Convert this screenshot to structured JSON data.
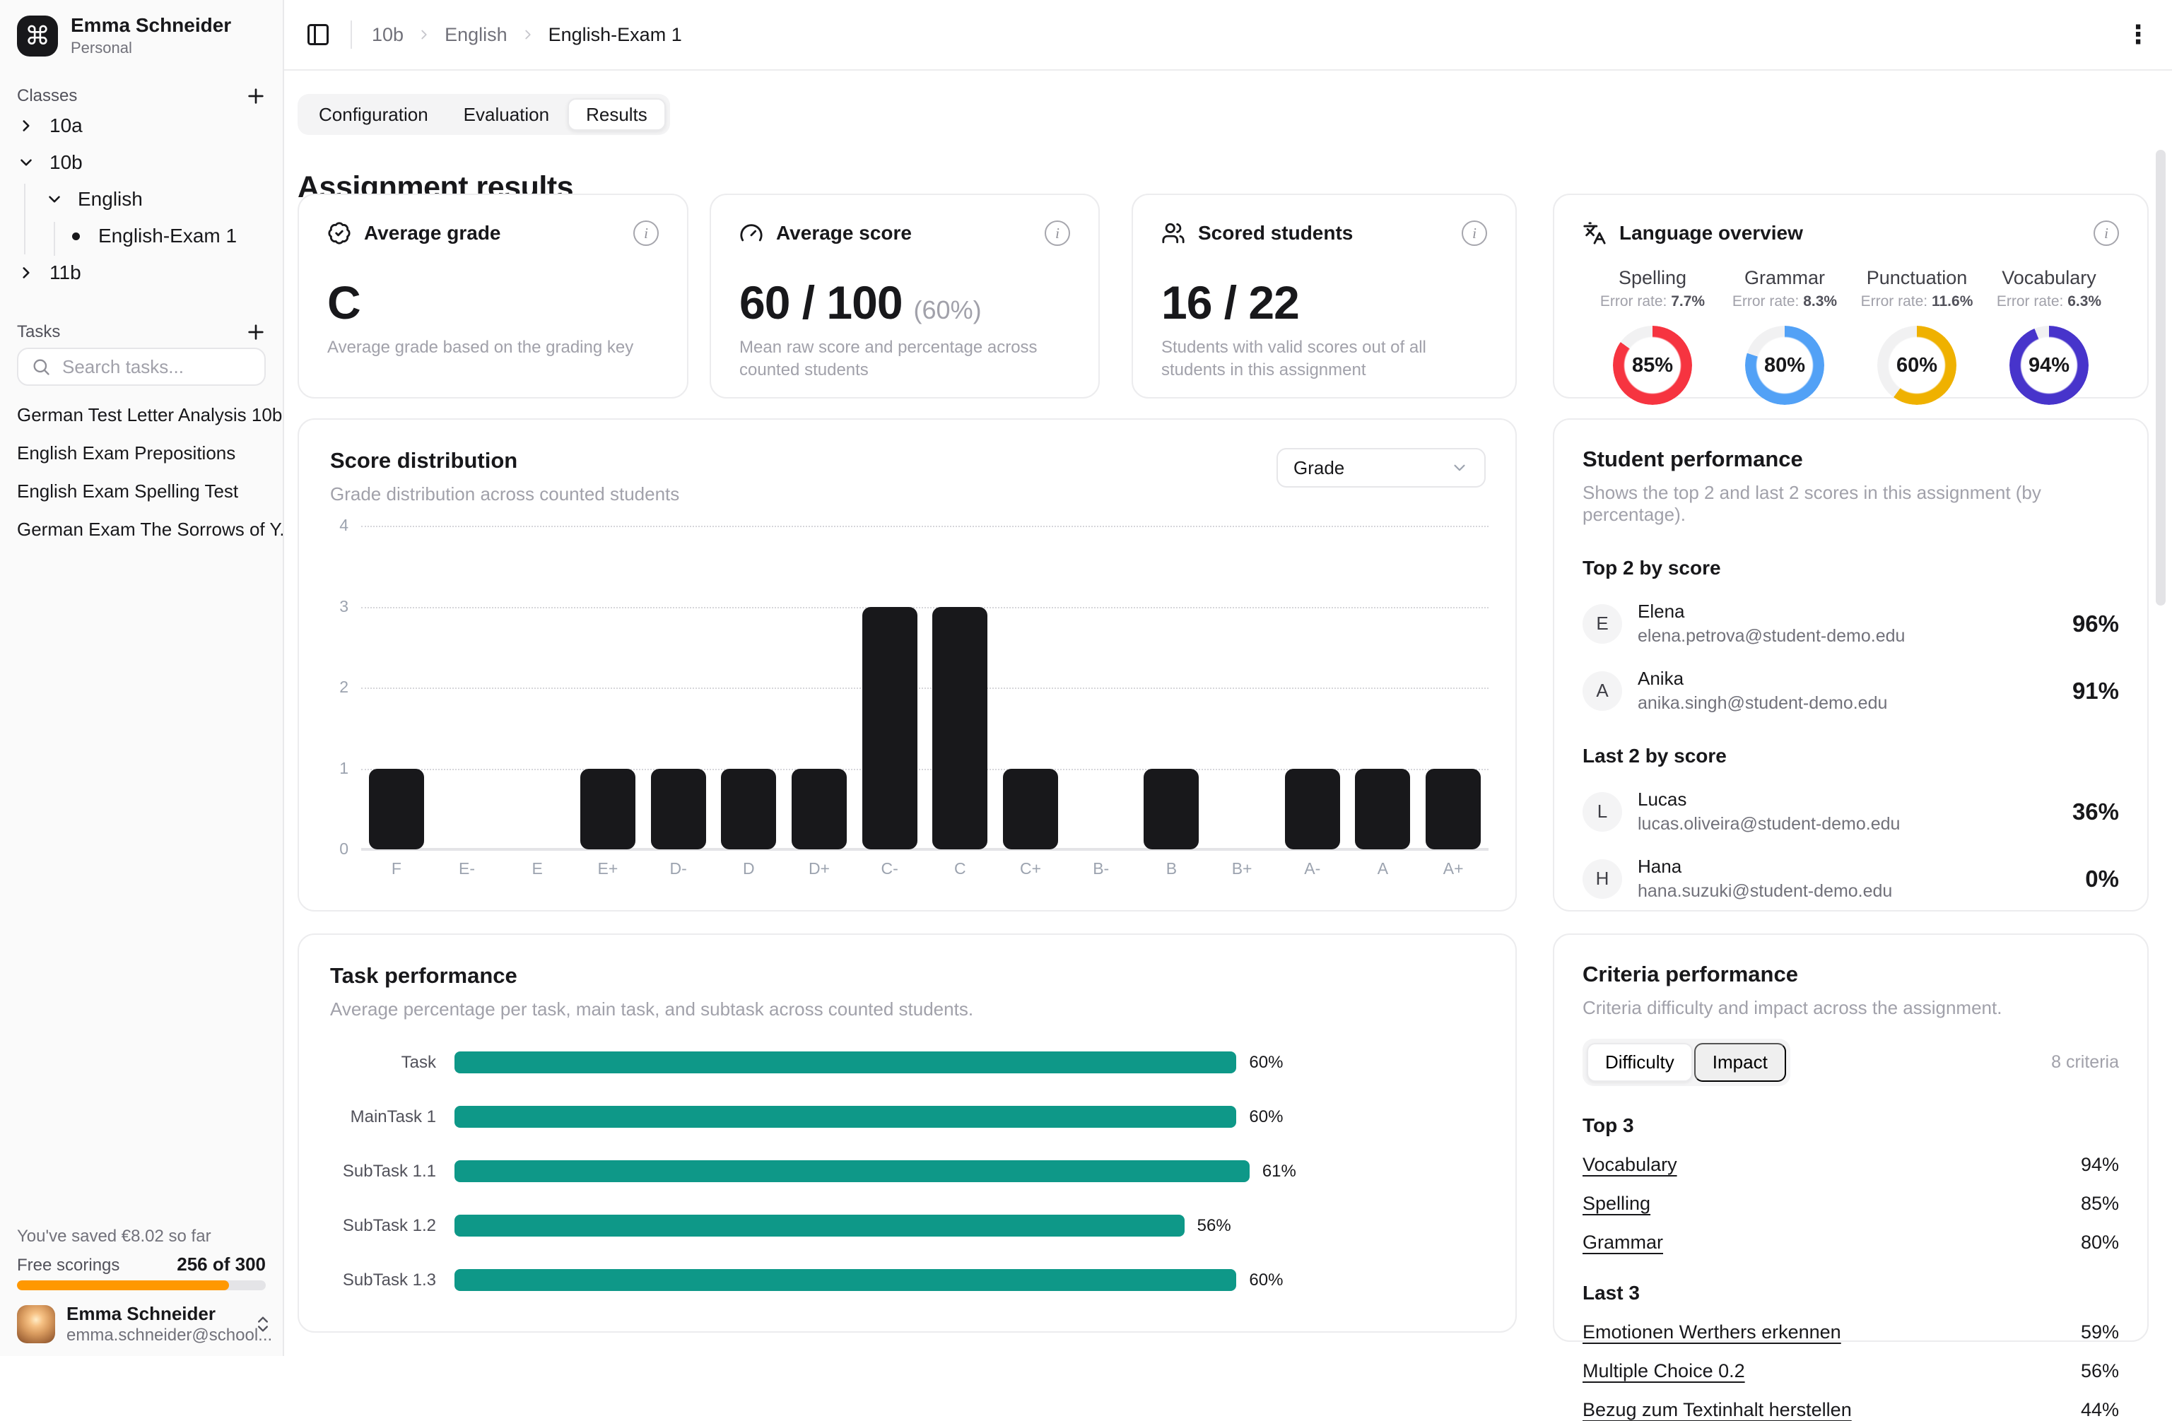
{
  "icons": {
    "workspace_glyph": "⌘",
    "kebab": "⋮",
    "info": "i"
  },
  "colors": {
    "accent_teal": "#0e9888",
    "bar_black": "#18181b",
    "progress_orange": "#ff9800",
    "ring_red": "#f63440",
    "ring_blue": "#52a1f6",
    "ring_amber": "#efb100",
    "ring_indigo": "#4734cb"
  },
  "sidebar": {
    "workspace": {
      "name": "Emma Schneider",
      "type": "Personal"
    },
    "classes_label": "Classes",
    "classes": [
      {
        "label": "10a",
        "state": "collapsed",
        "level": 0
      },
      {
        "label": "10b",
        "state": "expanded",
        "level": 0
      },
      {
        "label": "English",
        "state": "expanded",
        "level": 1
      },
      {
        "label": "English-Exam 1",
        "state": "leaf",
        "level": 2
      },
      {
        "label": "11b",
        "state": "collapsed",
        "level": 0
      }
    ],
    "tasks_label": "Tasks",
    "search_placeholder": "Search tasks...",
    "tasks": [
      "German Test Letter Analysis 10b",
      "English Exam Prepositions",
      "English Exam Spelling Test",
      "German Exam The Sorrows of Y..."
    ],
    "saved_text": "You've saved €8.02 so far",
    "free_scorings": {
      "label": "Free scorings",
      "used": 256,
      "total": 300,
      "display": "256 of 300",
      "bar_color": "#ff9800"
    },
    "user": {
      "name": "Emma Schneider",
      "email": "emma.schneider@school..."
    }
  },
  "topbar": {
    "breadcrumb": [
      {
        "label": "10b",
        "current": false
      },
      {
        "label": "English",
        "current": false
      },
      {
        "label": "English-Exam 1",
        "current": true
      }
    ]
  },
  "tabs": [
    {
      "label": "Configuration",
      "active": false
    },
    {
      "label": "Evaluation",
      "active": false
    },
    {
      "label": "Results",
      "active": true
    }
  ],
  "page_title": "Assignment results",
  "summary_cards": {
    "average_grade": {
      "title": "Average grade",
      "value": "C",
      "caption": "Average grade based on the grading key"
    },
    "average_score": {
      "title": "Average score",
      "value": "60 / 100",
      "percent": "(60%)",
      "caption": "Mean raw score and percentage across counted students"
    },
    "scored_students": {
      "title": "Scored students",
      "value": "16 / 22",
      "caption": "Students with valid scores out of all students in this assignment"
    },
    "language_overview": {
      "title": "Language overview",
      "metrics": [
        {
          "label": "Spelling",
          "error_rate_label": "Error rate:",
          "error_rate": "7.7%",
          "value": 85,
          "color": "#f63440"
        },
        {
          "label": "Grammar",
          "error_rate_label": "Error rate:",
          "error_rate": "8.3%",
          "value": 80,
          "color": "#52a1f6"
        },
        {
          "label": "Punctuation",
          "error_rate_label": "Error rate:",
          "error_rate": "11.6%",
          "value": 60,
          "color": "#efb100"
        },
        {
          "label": "Vocabulary",
          "error_rate_label": "Error rate:",
          "error_rate": "6.3%",
          "value": 94,
          "color": "#4734cb"
        }
      ]
    }
  },
  "chart_data": [
    {
      "id": "score_distribution",
      "type": "bar",
      "title": "Score distribution",
      "subtitle": "Grade distribution across counted students",
      "group_by": "Grade",
      "categories": [
        "F",
        "E-",
        "E",
        "E+",
        "D-",
        "D",
        "D+",
        "C-",
        "C",
        "C+",
        "B-",
        "B",
        "B+",
        "A-",
        "A",
        "A+"
      ],
      "values": [
        1,
        0,
        0,
        1,
        1,
        1,
        1,
        3,
        3,
        1,
        0,
        1,
        0,
        1,
        1,
        1
      ],
      "xlabel": "",
      "ylabel": "",
      "ylim": [
        0,
        4
      ],
      "yticks": [
        0,
        1,
        2,
        3,
        4
      ],
      "grid": "horizontal-dotted",
      "bar_color": "#18181b",
      "legend": "none"
    },
    {
      "id": "task_performance",
      "type": "bar",
      "orientation": "horizontal",
      "title": "Task performance",
      "subtitle": "Average percentage per task, main task, and subtask across counted students.",
      "categories": [
        "Task",
        "MainTask 1",
        "SubTask 1.1",
        "SubTask 1.2",
        "SubTask 1.3"
      ],
      "values": [
        60,
        60,
        61,
        56,
        60
      ],
      "unit": "%",
      "xlim": [
        0,
        100
      ],
      "bar_color": "#0e9888",
      "legend": "none"
    }
  ],
  "student_performance": {
    "title": "Student performance",
    "subtitle": "Shows the top 2 and last 2 scores in this assignment (by percentage).",
    "sections": [
      {
        "heading": "Top 2 by score",
        "rows": [
          {
            "initial": "E",
            "name": "Elena",
            "email": "elena.petrova@student-demo.edu",
            "score": "96%"
          },
          {
            "initial": "A",
            "name": "Anika",
            "email": "anika.singh@student-demo.edu",
            "score": "91%"
          }
        ]
      },
      {
        "heading": "Last 2 by score",
        "rows": [
          {
            "initial": "L",
            "name": "Lucas",
            "email": "lucas.oliveira@student-demo.edu",
            "score": "36%"
          },
          {
            "initial": "H",
            "name": "Hana",
            "email": "hana.suzuki@student-demo.edu",
            "score": "0%"
          }
        ]
      }
    ]
  },
  "criteria_performance": {
    "title": "Criteria performance",
    "subtitle": "Criteria difficulty and impact across the assignment.",
    "toggle": [
      {
        "label": "Difficulty",
        "active": true
      },
      {
        "label": "Impact",
        "active": false
      }
    ],
    "count_label": "8 criteria",
    "sections": [
      {
        "heading": "Top 3",
        "rows": [
          {
            "label": "Vocabulary",
            "value": "94%"
          },
          {
            "label": "Spelling",
            "value": "85%"
          },
          {
            "label": "Grammar",
            "value": "80%"
          }
        ]
      },
      {
        "heading": "Last 3",
        "rows": [
          {
            "label": "Emotionen Werthers erkennen",
            "value": "59%"
          },
          {
            "label": "Multiple Choice 0.2",
            "value": "56%"
          },
          {
            "label": "Bezug zum Textinhalt herstellen",
            "value": "44%"
          }
        ]
      }
    ]
  }
}
